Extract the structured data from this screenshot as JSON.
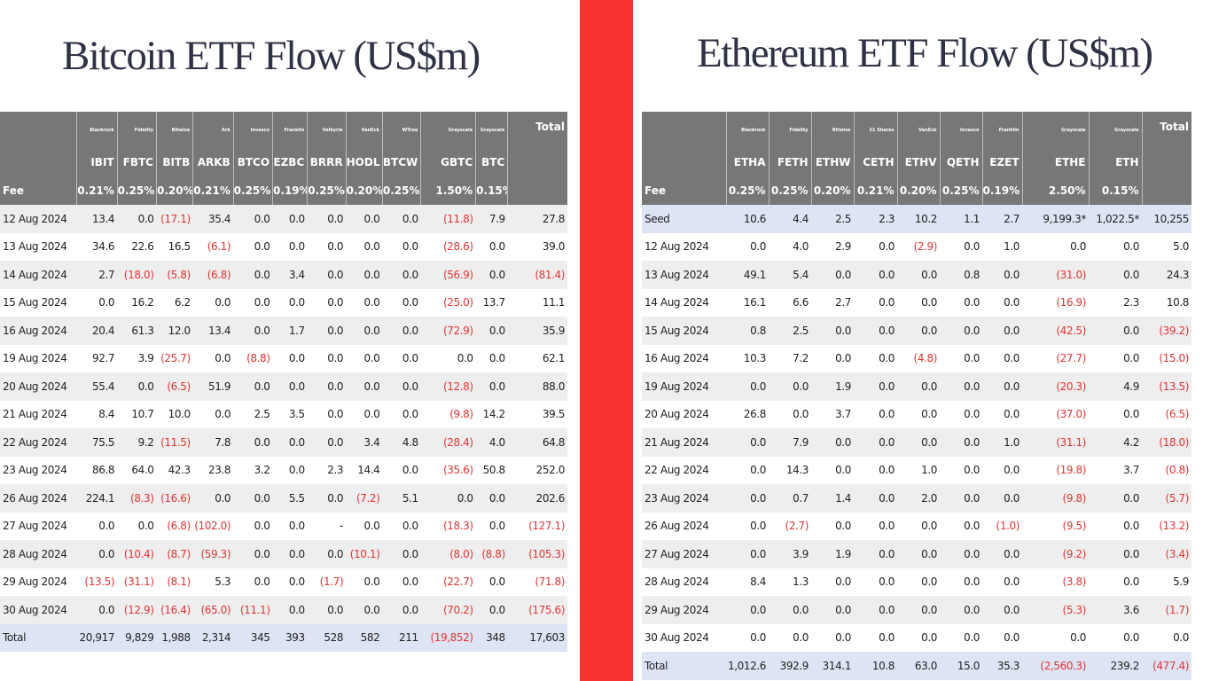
{
  "btc": {
    "title": "Bitcoin ETF Flow (US$m)",
    "managers": [
      "",
      "Blackrock",
      "Fidelity",
      "Bitwise",
      "Ark",
      "Invesco",
      "Franklin",
      "Valkyrie",
      "VanEck",
      "WTree",
      "Grayscale",
      "Grayscale",
      "Total"
    ],
    "tickers": [
      "",
      "IBIT",
      "FBTC",
      "BITB",
      "ARKB",
      "BTCO",
      "EZBC",
      "BRRR",
      "HODL",
      "BTCW",
      "GBTC",
      "BTC",
      ""
    ],
    "fees": [
      "Fee",
      "0.21%",
      "0.25%",
      "0.20%",
      "0.21%",
      "0.25%",
      "0.19%",
      "0.25%",
      "0.20%",
      "0.25%",
      "1.50%",
      "0.15%",
      ""
    ],
    "rows": [
      [
        "12 Aug 2024",
        "13.4",
        "0.0",
        "(17.1)",
        "35.4",
        "0.0",
        "0.0",
        "0.0",
        "0.0",
        "0.0",
        "(11.8)",
        "7.9",
        "27.8"
      ],
      [
        "13 Aug 2024",
        "34.6",
        "22.6",
        "16.5",
        "(6.1)",
        "0.0",
        "0.0",
        "0.0",
        "0.0",
        "0.0",
        "(28.6)",
        "0.0",
        "39.0"
      ],
      [
        "14 Aug 2024",
        "2.7",
        "(18.0)",
        "(5.8)",
        "(6.8)",
        "0.0",
        "3.4",
        "0.0",
        "0.0",
        "0.0",
        "(56.9)",
        "0.0",
        "(81.4)"
      ],
      [
        "15 Aug 2024",
        "0.0",
        "16.2",
        "6.2",
        "0.0",
        "0.0",
        "0.0",
        "0.0",
        "0.0",
        "0.0",
        "(25.0)",
        "13.7",
        "11.1"
      ],
      [
        "16 Aug 2024",
        "20.4",
        "61.3",
        "12.0",
        "13.4",
        "0.0",
        "1.7",
        "0.0",
        "0.0",
        "0.0",
        "(72.9)",
        "0.0",
        "35.9"
      ],
      [
        "19 Aug 2024",
        "92.7",
        "3.9",
        "(25.7)",
        "0.0",
        "(8.8)",
        "0.0",
        "0.0",
        "0.0",
        "0.0",
        "0.0",
        "0.0",
        "62.1"
      ],
      [
        "20 Aug 2024",
        "55.4",
        "0.0",
        "(6.5)",
        "51.9",
        "0.0",
        "0.0",
        "0.0",
        "0.0",
        "0.0",
        "(12.8)",
        "0.0",
        "88.0"
      ],
      [
        "21 Aug 2024",
        "8.4",
        "10.7",
        "10.0",
        "0.0",
        "2.5",
        "3.5",
        "0.0",
        "0.0",
        "0.0",
        "(9.8)",
        "14.2",
        "39.5"
      ],
      [
        "22 Aug 2024",
        "75.5",
        "9.2",
        "(11.5)",
        "7.8",
        "0.0",
        "0.0",
        "0.0",
        "3.4",
        "4.8",
        "(28.4)",
        "4.0",
        "64.8"
      ],
      [
        "23 Aug 2024",
        "86.8",
        "64.0",
        "42.3",
        "23.8",
        "3.2",
        "0.0",
        "2.3",
        "14.4",
        "0.0",
        "(35.6)",
        "50.8",
        "252.0"
      ],
      [
        "26 Aug 2024",
        "224.1",
        "(8.3)",
        "(16.6)",
        "0.0",
        "0.0",
        "5.5",
        "0.0",
        "(7.2)",
        "5.1",
        "0.0",
        "0.0",
        "202.6"
      ],
      [
        "27 Aug 2024",
        "0.0",
        "0.0",
        "(6.8)",
        "(102.0)",
        "0.0",
        "0.0",
        "-",
        "0.0",
        "0.0",
        "(18.3)",
        "0.0",
        "(127.1)"
      ],
      [
        "28 Aug 2024",
        "0.0",
        "(10.4)",
        "(8.7)",
        "(59.3)",
        "0.0",
        "0.0",
        "0.0",
        "(10.1)",
        "0.0",
        "(8.0)",
        "(8.8)",
        "(105.3)"
      ],
      [
        "29 Aug 2024",
        "(13.5)",
        "(31.1)",
        "(8.1)",
        "5.3",
        "0.0",
        "0.0",
        "(1.7)",
        "0.0",
        "0.0",
        "(22.7)",
        "0.0",
        "(71.8)"
      ],
      [
        "30 Aug 2024",
        "0.0",
        "(12.9)",
        "(16.4)",
        "(65.0)",
        "(11.1)",
        "0.0",
        "0.0",
        "0.0",
        "0.0",
        "(70.2)",
        "0.0",
        "(175.6)"
      ],
      [
        "Total",
        "20,917",
        "9,829",
        "1,988",
        "2,314",
        "345",
        "393",
        "528",
        "582",
        "211",
        "(19,852)",
        "348",
        "17,603"
      ]
    ]
  },
  "eth": {
    "title": "Ethereum ETF Flow (US$m)",
    "managers": [
      "",
      "Blackrock",
      "Fidelity",
      "Bitwise",
      "21 Shares",
      "VanEck",
      "Invesco",
      "Franklin",
      "Grayscale",
      "Grayscale",
      "Total"
    ],
    "tickers": [
      "",
      "ETHA",
      "FETH",
      "ETHW",
      "CETH",
      "ETHV",
      "QETH",
      "EZET",
      "ETHE",
      "ETH",
      ""
    ],
    "fees": [
      "Fee",
      "0.25%",
      "0.25%",
      "0.20%",
      "0.21%",
      "0.20%",
      "0.25%",
      "0.19%",
      "2.50%",
      "0.15%",
      ""
    ],
    "rows": [
      [
        "Seed",
        "10.6",
        "4.4",
        "2.5",
        "2.3",
        "10.2",
        "1.1",
        "2.7",
        "9,199.3*",
        "1,022.5*",
        "10,255"
      ],
      [
        "12 Aug 2024",
        "0.0",
        "4.0",
        "2.9",
        "0.0",
        "(2.9)",
        "0.0",
        "1.0",
        "0.0",
        "0.0",
        "5.0"
      ],
      [
        "13 Aug 2024",
        "49.1",
        "5.4",
        "0.0",
        "0.0",
        "0.0",
        "0.8",
        "0.0",
        "(31.0)",
        "0.0",
        "24.3"
      ],
      [
        "14 Aug 2024",
        "16.1",
        "6.6",
        "2.7",
        "0.0",
        "0.0",
        "0.0",
        "0.0",
        "(16.9)",
        "2.3",
        "10.8"
      ],
      [
        "15 Aug 2024",
        "0.8",
        "2.5",
        "0.0",
        "0.0",
        "0.0",
        "0.0",
        "0.0",
        "(42.5)",
        "0.0",
        "(39.2)"
      ],
      [
        "16 Aug 2024",
        "10.3",
        "7.2",
        "0.0",
        "0.0",
        "(4.8)",
        "0.0",
        "0.0",
        "(27.7)",
        "0.0",
        "(15.0)"
      ],
      [
        "19 Aug 2024",
        "0.0",
        "0.0",
        "1.9",
        "0.0",
        "0.0",
        "0.0",
        "0.0",
        "(20.3)",
        "4.9",
        "(13.5)"
      ],
      [
        "20 Aug 2024",
        "26.8",
        "0.0",
        "3.7",
        "0.0",
        "0.0",
        "0.0",
        "0.0",
        "(37.0)",
        "0.0",
        "(6.5)"
      ],
      [
        "21 Aug 2024",
        "0.0",
        "7.9",
        "0.0",
        "0.0",
        "0.0",
        "0.0",
        "1.0",
        "(31.1)",
        "4.2",
        "(18.0)"
      ],
      [
        "22 Aug 2024",
        "0.0",
        "14.3",
        "0.0",
        "0.0",
        "1.0",
        "0.0",
        "0.0",
        "(19.8)",
        "3.7",
        "(0.8)"
      ],
      [
        "23 Aug 2024",
        "0.0",
        "0.7",
        "1.4",
        "0.0",
        "2.0",
        "0.0",
        "0.0",
        "(9.8)",
        "0.0",
        "(5.7)"
      ],
      [
        "26 Aug 2024",
        "0.0",
        "(2.7)",
        "0.0",
        "0.0",
        "0.0",
        "0.0",
        "(1.0)",
        "(9.5)",
        "0.0",
        "(13.2)"
      ],
      [
        "27 Aug 2024",
        "0.0",
        "3.9",
        "1.9",
        "0.0",
        "0.0",
        "0.0",
        "0.0",
        "(9.2)",
        "0.0",
        "(3.4)"
      ],
      [
        "28 Aug 2024",
        "8.4",
        "1.3",
        "0.0",
        "0.0",
        "0.0",
        "0.0",
        "0.0",
        "(3.8)",
        "0.0",
        "5.9"
      ],
      [
        "29 Aug 2024",
        "0.0",
        "0.0",
        "0.0",
        "0.0",
        "0.0",
        "0.0",
        "0.0",
        "(5.3)",
        "3.6",
        "(1.7)"
      ],
      [
        "30 Aug 2024",
        "0.0",
        "0.0",
        "0.0",
        "0.0",
        "0.0",
        "0.0",
        "0.0",
        "0.0",
        "0.0",
        "0.0"
      ],
      [
        "Total",
        "1,012.6",
        "392.9",
        "314.1",
        "10.8",
        "63.0",
        "15.0",
        "35.3",
        "(2,560.3)",
        "239.2",
        "(477.4)"
      ]
    ]
  },
  "colors": {
    "divider": "#f53131",
    "header_bg": "#777777",
    "negative": "#e23434",
    "total_row_bg": "#dde4f3",
    "stripe_bg": "#eeeeee"
  }
}
